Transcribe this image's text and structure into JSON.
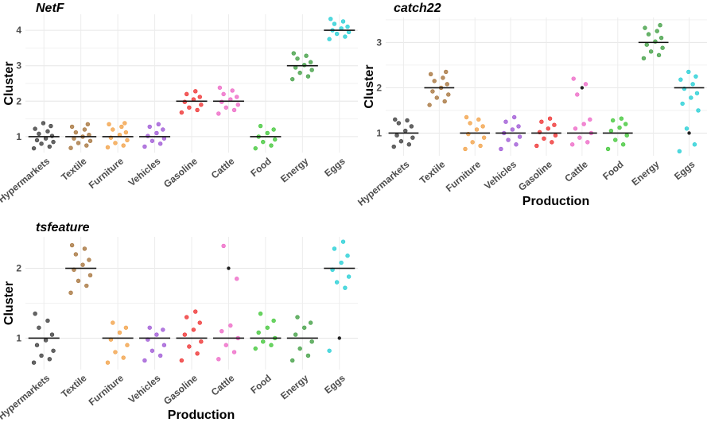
{
  "chart_data": [
    {
      "type": "scatter",
      "title": "NetF",
      "ylabel": "Cluster",
      "xlabel": "",
      "categories": [
        "Hypermarkets",
        "Textile",
        "Furniture",
        "Vehicles",
        "Gasoline",
        "Cattle",
        "Food",
        "Energy",
        "Eggs"
      ],
      "colors": [
        "#3f3f3f",
        "#a8763e",
        "#f2a34a",
        "#a05ad6",
        "#ef3434",
        "#ee6ac7",
        "#45c83c",
        "#43a046",
        "#27cfd6"
      ],
      "medians": [
        1,
        1,
        1,
        1,
        2,
        2,
        1,
        3,
        4
      ],
      "yticks": [
        1,
        2,
        3,
        4
      ],
      "ylim": [
        0.55,
        4.45
      ],
      "grid": true,
      "points": [
        [
          0.67,
          0.72,
          0.8,
          0.85,
          0.9,
          0.95,
          1.02,
          1.08,
          1.15,
          1.22,
          1.3,
          1.38
        ],
        [
          0.68,
          0.75,
          0.82,
          0.88,
          0.95,
          1.0,
          1.05,
          1.12,
          1.2,
          1.28,
          1.35
        ],
        [
          0.7,
          0.75,
          0.82,
          0.9,
          0.97,
          1.05,
          1.12,
          1.2,
          1.28,
          1.35,
          1.38
        ],
        [
          0.72,
          0.8,
          0.88,
          0.95,
          1.02,
          1.1,
          1.2,
          1.28,
          1.35
        ],
        [
          1.68,
          1.75,
          1.82,
          1.9,
          1.98,
          2.05,
          2.12,
          2.2,
          2.28
        ],
        [
          1.65,
          1.75,
          1.82,
          1.9,
          1.98,
          2.05,
          2.12,
          2.2,
          2.3,
          2.38
        ],
        [
          0.67,
          0.75,
          0.85,
          0.92,
          1.0,
          1.1,
          1.2,
          1.3
        ],
        [
          2.62,
          2.7,
          2.8,
          2.88,
          2.95,
          3.02,
          3.1,
          3.2,
          3.28,
          3.35
        ],
        [
          3.75,
          3.82,
          3.9,
          3.95,
          4.0,
          4.05,
          4.1,
          4.18,
          4.25,
          4.32
        ]
      ],
      "outliers": [
        [],
        [],
        [],
        [],
        [],
        [],
        [],
        [],
        []
      ]
    },
    {
      "type": "scatter",
      "title": "catch22",
      "ylabel": "Cluster",
      "xlabel": "Production",
      "categories": [
        "Hypermarkets",
        "Textile",
        "Furniture",
        "Vehicles",
        "Gasoline",
        "Cattle",
        "Food",
        "Energy",
        "Eggs"
      ],
      "colors": [
        "#3f3f3f",
        "#a8763e",
        "#f2a34a",
        "#a05ad6",
        "#ef3434",
        "#ee6ac7",
        "#45c83c",
        "#43a046",
        "#27cfd6"
      ],
      "medians": [
        1,
        2,
        1,
        1,
        1,
        1,
        1,
        3,
        2
      ],
      "yticks": [
        1,
        2,
        3
      ],
      "ylim": [
        0.5,
        3.55
      ],
      "grid": true,
      "points": [
        [
          0.7,
          0.75,
          0.82,
          0.9,
          0.95,
          1.05,
          1.15,
          1.22,
          1.28,
          1.3
        ],
        [
          1.62,
          1.7,
          1.78,
          1.85,
          1.92,
          2.0,
          2.08,
          2.15,
          2.22,
          2.3,
          2.35
        ],
        [
          0.65,
          0.72,
          0.8,
          0.9,
          0.98,
          1.08,
          1.15,
          1.22,
          1.3,
          1.35
        ],
        [
          0.65,
          0.75,
          0.85,
          0.92,
          1.0,
          1.08,
          1.15,
          1.25,
          1.35
        ],
        [
          0.72,
          0.8,
          0.88,
          0.95,
          1.02,
          1.1,
          1.18,
          1.25,
          1.32
        ],
        [
          0.75,
          0.8,
          0.9,
          1.0,
          1.1,
          1.2,
          1.3,
          1.85,
          2.08,
          2.2
        ],
        [
          0.65,
          0.75,
          0.85,
          0.95,
          1.05,
          1.12,
          1.2,
          1.28,
          1.32
        ],
        [
          2.65,
          2.72,
          2.8,
          2.88,
          2.95,
          3.02,
          3.1,
          3.18,
          3.25,
          3.32,
          3.38
        ],
        [
          0.6,
          0.75,
          1.1,
          1.5,
          1.65,
          1.78,
          1.88,
          1.98,
          2.08,
          2.18,
          2.25,
          2.35
        ]
      ],
      "outliers": [
        [],
        [],
        [],
        [],
        [],
        [
          2.0
        ],
        [],
        [],
        [
          1.0
        ]
      ]
    },
    {
      "type": "scatter",
      "title": "tsfeature",
      "ylabel": "Cluster",
      "xlabel": "Production",
      "categories": [
        "Hypermarkets",
        "Textile",
        "Furniture",
        "Vehicles",
        "Gasoline",
        "Cattle",
        "Food",
        "Energy",
        "Eggs"
      ],
      "colors": [
        "#3f3f3f",
        "#a8763e",
        "#f2a34a",
        "#a05ad6",
        "#ef3434",
        "#ee6ac7",
        "#45c83c",
        "#43a046",
        "#27cfd6"
      ],
      "medians": [
        1,
        2,
        1,
        1,
        1,
        1,
        1,
        1,
        2
      ],
      "yticks": [
        1,
        2
      ],
      "ylim": [
        0.55,
        2.45
      ],
      "grid": true,
      "points": [
        [
          0.65,
          0.7,
          0.75,
          0.82,
          0.9,
          0.97,
          1.05,
          1.15,
          1.25,
          1.35
        ],
        [
          1.65,
          1.75,
          1.82,
          1.9,
          1.98,
          2.05,
          2.12,
          2.2,
          2.28,
          2.33
        ],
        [
          0.65,
          0.72,
          0.8,
          0.9,
          0.98,
          1.08,
          1.15,
          1.22
        ],
        [
          0.68,
          0.75,
          0.82,
          0.9,
          0.98,
          1.05,
          1.12,
          1.15
        ],
        [
          0.68,
          0.78,
          0.88,
          0.95,
          1.05,
          1.12,
          1.22,
          1.3,
          1.38
        ],
        [
          0.7,
          0.8,
          0.9,
          1.0,
          1.1,
          1.18,
          1.85,
          2.32
        ],
        [
          0.85,
          0.9,
          0.95,
          1.0,
          1.08,
          1.15,
          1.25,
          1.35
        ],
        [
          0.68,
          0.75,
          0.85,
          0.95,
          1.05,
          1.15,
          1.22,
          1.3
        ],
        [
          0.82,
          1.72,
          1.8,
          1.88,
          1.98,
          2.08,
          2.18,
          2.28,
          2.38
        ]
      ],
      "outliers": [
        [],
        [],
        [],
        [],
        [],
        [
          2.0
        ],
        [],
        [],
        [
          1.0
        ]
      ]
    }
  ]
}
